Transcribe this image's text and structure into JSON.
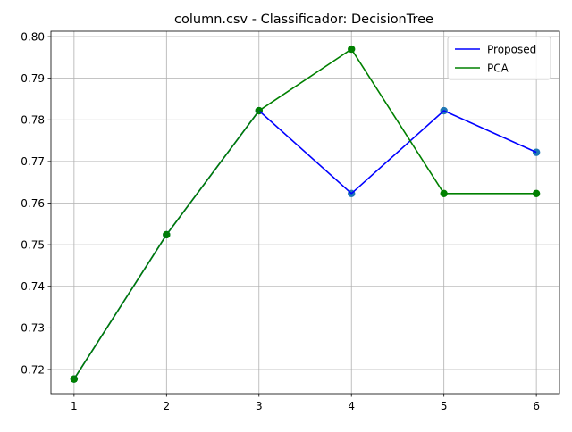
{
  "chart_data": {
    "type": "line",
    "title": "column.csv - Classificador: DecisionTree",
    "xlabel": "",
    "ylabel": "",
    "x": [
      1,
      2,
      3,
      4,
      5,
      6
    ],
    "xlim": [
      0.75,
      6.25
    ],
    "ylim": [
      0.7142,
      0.8013
    ],
    "xticks": [
      1,
      2,
      3,
      4,
      5,
      6
    ],
    "yticks": [
      0.72,
      0.73,
      0.74,
      0.75,
      0.76,
      0.77,
      0.78,
      0.79,
      0.8
    ],
    "ytick_labels": [
      "0.72",
      "0.73",
      "0.74",
      "0.75",
      "0.76",
      "0.77",
      "0.78",
      "0.79",
      "0.80"
    ],
    "grid": true,
    "legend_position": "top-right",
    "series": [
      {
        "name": "Proposed",
        "color": "#0000ff",
        "marker_color": "#1f77b4",
        "values": [
          0.7177,
          0.7524,
          0.7822,
          0.7623,
          0.7822,
          0.7722
        ]
      },
      {
        "name": "PCA",
        "color": "#008000",
        "marker_color": "#008000",
        "values": [
          0.7177,
          0.7524,
          0.7822,
          0.797,
          0.7623,
          0.7623
        ]
      }
    ]
  }
}
